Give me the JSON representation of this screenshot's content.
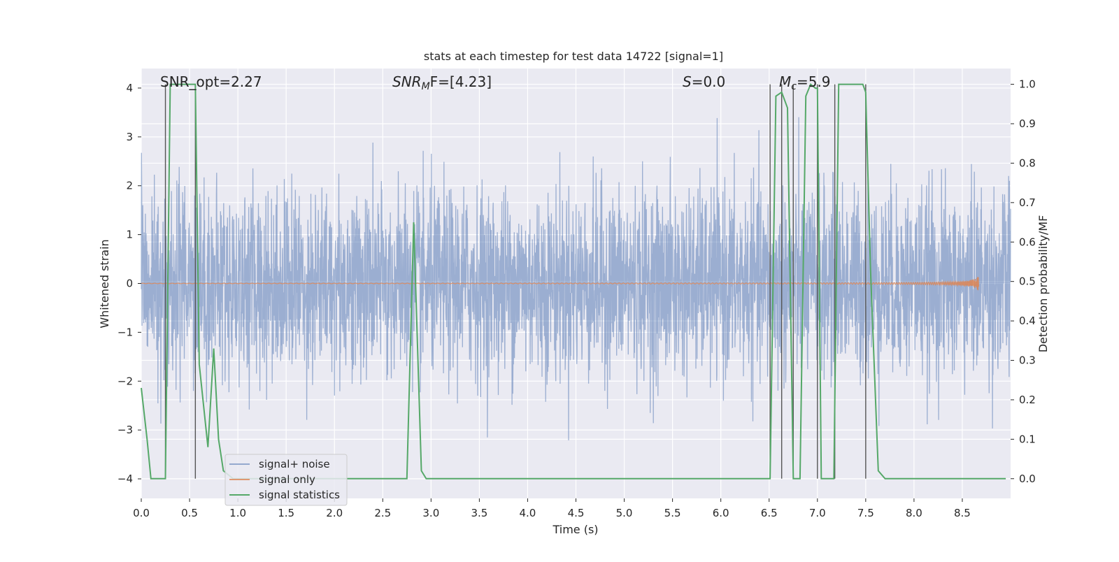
{
  "chart_data": {
    "type": "line",
    "title": "stats at each timestep for test data 14722 [signal=1]",
    "xlabel": "Time (s)",
    "ylabel_left": "Whitened strain",
    "ylabel_right": "Detection probability/MF",
    "xlim": [
      0.0,
      9.0
    ],
    "ylim_left": [
      -4.4,
      4.4
    ],
    "ylim_right": [
      -0.05,
      1.04
    ],
    "x_ticks": [
      0.0,
      0.5,
      1.0,
      1.5,
      2.0,
      2.5,
      3.0,
      3.5,
      4.0,
      4.5,
      5.0,
      5.5,
      6.0,
      6.5,
      7.0,
      7.5,
      8.0,
      8.5
    ],
    "x_tick_labels": [
      "0.0",
      "0.5",
      "1.0",
      "1.5",
      "2.0",
      "2.5",
      "3.0",
      "3.5",
      "4.0",
      "4.5",
      "5.0",
      "5.5",
      "6.0",
      "6.5",
      "7.0",
      "7.5",
      "8.0",
      "8.5"
    ],
    "y_left_ticks": [
      4,
      3,
      2,
      1,
      0,
      -1,
      -2,
      -3,
      -4
    ],
    "y_left_tick_labels": [
      "4",
      "3",
      "2",
      "1",
      "0",
      "−1",
      "−2",
      "−3",
      "−4"
    ],
    "y_right_ticks": [
      1.0,
      0.9,
      0.8,
      0.7,
      0.6,
      0.5,
      0.4,
      0.3,
      0.2,
      0.1,
      0.0
    ],
    "y_right_tick_labels": [
      "1.0",
      "0.9",
      "0.8",
      "0.7",
      "0.6",
      "0.5",
      "0.4",
      "0.3",
      "0.2",
      "0.1",
      "0.0"
    ],
    "annotations": {
      "snr_opt": "SNR_opt=2.27",
      "snr_mf_main": "SNR",
      "snr_mf_sub": "M",
      "snr_mf_rest": "F=[4.23]",
      "s_main": "S",
      "s_rest": "=0.0",
      "mc_main": "M",
      "mc_sub": "c",
      "mc_rest": "=5.9"
    },
    "legend": [
      "signal+ noise",
      "signal only",
      "signal statistics"
    ],
    "legend_position": "lower-left",
    "colors": {
      "noise": "#4c72b0",
      "signal": "#dd8452",
      "stats": "#55a868",
      "vlines": "#555555",
      "plot_bg": "#eaeaf2",
      "grid": "#ffffff"
    },
    "series": [
      {
        "name": "signal statistics",
        "axis": "right",
        "x": [
          0.0,
          0.06,
          0.1,
          0.24,
          0.25,
          0.3,
          0.55,
          0.56,
          0.6,
          0.69,
          0.75,
          0.8,
          0.85,
          0.95,
          1.0,
          2.7,
          2.75,
          2.82,
          2.9,
          2.95,
          6.5,
          6.51,
          6.57,
          6.63,
          6.69,
          6.75,
          6.82,
          6.88,
          6.93,
          6.98,
          7.0,
          7.04,
          7.07,
          7.17,
          7.22,
          7.47,
          7.5,
          7.55,
          7.63,
          7.7,
          8.95
        ],
        "y": [
          0.23,
          0.1,
          0.0,
          0.0,
          0.0,
          1.0,
          1.0,
          1.0,
          0.29,
          0.08,
          0.33,
          0.1,
          0.02,
          0.0,
          0.0,
          0.0,
          0.0,
          0.65,
          0.02,
          0.0,
          0.0,
          0.0,
          0.97,
          0.98,
          0.94,
          0.0,
          0.0,
          0.97,
          1.0,
          0.99,
          0.99,
          0.0,
          0.0,
          0.0,
          1.0,
          1.0,
          0.98,
          0.53,
          0.02,
          0.0,
          0.0
        ]
      },
      {
        "name": "signal only",
        "axis": "left",
        "x_start": 0.0,
        "x_end": 8.67,
        "chirp_amplitude_max": 0.22
      },
      {
        "name": "signal+ noise",
        "axis": "left",
        "x_start": 0.0,
        "x_end": 9.0,
        "std": 1.0
      }
    ],
    "vlines_x": [
      0.25,
      0.56,
      6.51,
      6.63,
      6.75,
      7.0,
      7.18,
      7.5
    ],
    "vlines_range": [
      0.0,
      1.0
    ]
  }
}
